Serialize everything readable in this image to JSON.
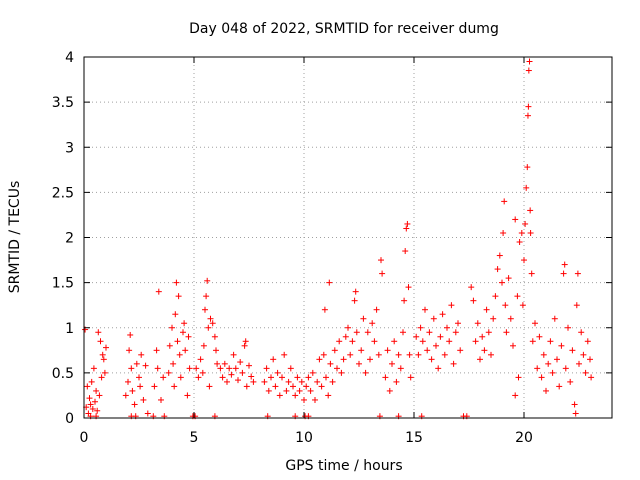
{
  "chart_data": {
    "type": "scatter",
    "title": "Day 048 of 2022, SRMTID for receiver dumg",
    "xlabel": "GPS time / hours",
    "ylabel": "SRMTID / TECUs",
    "xlim": [
      0,
      24
    ],
    "ylim": [
      0,
      4
    ],
    "grid": true,
    "marker": "+",
    "marker_color": "#ff0000",
    "x_ticks": [
      0,
      5,
      10,
      15,
      20
    ],
    "x_tick_labels": [
      "0",
      "5",
      "10",
      "15",
      "20"
    ],
    "y_ticks": [
      0,
      0.5,
      1,
      1.5,
      2,
      2.5,
      3,
      3.5,
      4
    ],
    "y_tick_labels": [
      "0",
      "0.5",
      "1",
      "1.5",
      "2",
      "2.5",
      "3",
      "3.5",
      "4"
    ],
    "series": [
      {
        "name": "SRMTID",
        "points": [
          [
            0.05,
            0.98
          ],
          [
            0.1,
            0.12
          ],
          [
            0.15,
            0.35
          ],
          [
            0.2,
            0.05
          ],
          [
            0.25,
            0.22
          ],
          [
            0.3,
            0.15
          ],
          [
            0.35,
            0.4
          ],
          [
            0.4,
            0.1
          ],
          [
            0.45,
            0.55
          ],
          [
            0.5,
            0.18
          ],
          [
            0.55,
            0.3
          ],
          [
            0.6,
            0.08
          ],
          [
            0.65,
            0.95
          ],
          [
            0.7,
            0.25
          ],
          [
            0.75,
            0.85
          ],
          [
            0.8,
            0.45
          ],
          [
            0.85,
            0.7
          ],
          [
            0.9,
            0.65
          ],
          [
            0.95,
            0.5
          ],
          [
            1.0,
            0.78
          ],
          [
            0.55,
            0.02
          ],
          [
            0.3,
            0.02
          ],
          [
            1.9,
            0.25
          ],
          [
            2.0,
            0.4
          ],
          [
            2.05,
            0.75
          ],
          [
            2.1,
            0.92
          ],
          [
            2.15,
            0.55
          ],
          [
            2.2,
            0.3
          ],
          [
            2.3,
            0.15
          ],
          [
            2.4,
            0.6
          ],
          [
            2.5,
            0.45
          ],
          [
            2.55,
            0.35
          ],
          [
            2.6,
            0.7
          ],
          [
            2.7,
            0.2
          ],
          [
            2.8,
            0.58
          ],
          [
            2.9,
            0.05
          ],
          [
            2.35,
            0.02
          ],
          [
            2.15,
            0.02
          ],
          [
            3.2,
            0.35
          ],
          [
            3.3,
            0.75
          ],
          [
            3.35,
            0.55
          ],
          [
            3.4,
            1.4
          ],
          [
            3.5,
            0.2
          ],
          [
            3.6,
            0.45
          ],
          [
            3.15,
            0.02
          ],
          [
            3.65,
            0.02
          ],
          [
            3.85,
            0.5
          ],
          [
            3.9,
            0.8
          ],
          [
            4.0,
            1.0
          ],
          [
            4.05,
            0.6
          ],
          [
            4.1,
            0.35
          ],
          [
            4.15,
            1.15
          ],
          [
            4.2,
            1.5
          ],
          [
            4.25,
            0.85
          ],
          [
            4.3,
            1.35
          ],
          [
            4.35,
            0.7
          ],
          [
            4.4,
            0.45
          ],
          [
            4.5,
            0.95
          ],
          [
            4.55,
            1.05
          ],
          [
            4.6,
            0.75
          ],
          [
            4.7,
            0.25
          ],
          [
            4.75,
            0.9
          ],
          [
            4.8,
            0.55
          ],
          [
            4.95,
            0.02
          ],
          [
            5.05,
            0.02
          ],
          [
            5.1,
            0.55
          ],
          [
            5.2,
            0.45
          ],
          [
            5.3,
            0.65
          ],
          [
            5.4,
            0.5
          ],
          [
            5.45,
            0.8
          ],
          [
            5.5,
            1.2
          ],
          [
            5.55,
            1.35
          ],
          [
            5.6,
            1.52
          ],
          [
            5.65,
            1.0
          ],
          [
            5.7,
            0.35
          ],
          [
            5.75,
            1.1
          ],
          [
            5.85,
            1.05
          ],
          [
            5.95,
            0.9
          ],
          [
            6.0,
            0.75
          ],
          [
            6.05,
            0.6
          ],
          [
            5.95,
            0.02
          ],
          [
            6.2,
            0.55
          ],
          [
            6.3,
            0.45
          ],
          [
            6.4,
            0.6
          ],
          [
            6.5,
            0.4
          ],
          [
            6.6,
            0.55
          ],
          [
            6.7,
            0.48
          ],
          [
            6.8,
            0.7
          ],
          [
            6.9,
            0.55
          ],
          [
            7.0,
            0.42
          ],
          [
            7.1,
            0.62
          ],
          [
            7.2,
            0.5
          ],
          [
            7.3,
            0.8
          ],
          [
            7.35,
            0.85
          ],
          [
            7.4,
            0.35
          ],
          [
            7.5,
            0.58
          ],
          [
            7.6,
            0.46
          ],
          [
            7.7,
            0.4
          ],
          [
            8.2,
            0.4
          ],
          [
            8.3,
            0.55
          ],
          [
            8.4,
            0.3
          ],
          [
            8.5,
            0.45
          ],
          [
            8.6,
            0.65
          ],
          [
            8.7,
            0.35
          ],
          [
            8.8,
            0.5
          ],
          [
            8.9,
            0.25
          ],
          [
            9.0,
            0.45
          ],
          [
            9.1,
            0.7
          ],
          [
            9.2,
            0.3
          ],
          [
            9.3,
            0.4
          ],
          [
            9.4,
            0.55
          ],
          [
            9.5,
            0.35
          ],
          [
            9.6,
            0.25
          ],
          [
            9.7,
            0.45
          ],
          [
            9.8,
            0.3
          ],
          [
            9.9,
            0.4
          ],
          [
            10.0,
            0.2
          ],
          [
            10.1,
            0.35
          ],
          [
            10.2,
            0.45
          ],
          [
            8.35,
            0.02
          ],
          [
            9.6,
            0.02
          ],
          [
            10.05,
            0.02
          ],
          [
            10.2,
            0.02
          ],
          [
            10.3,
            0.3
          ],
          [
            10.4,
            0.5
          ],
          [
            10.5,
            0.2
          ],
          [
            10.6,
            0.4
          ],
          [
            10.7,
            0.65
          ],
          [
            10.8,
            0.35
          ],
          [
            10.9,
            0.7
          ],
          [
            10.95,
            1.2
          ],
          [
            11.0,
            0.45
          ],
          [
            11.1,
            0.25
          ],
          [
            11.15,
            1.5
          ],
          [
            11.2,
            0.6
          ],
          [
            11.3,
            0.4
          ],
          [
            11.4,
            0.75
          ],
          [
            11.5,
            0.55
          ],
          [
            11.6,
            0.85
          ],
          [
            11.7,
            0.5
          ],
          [
            11.8,
            0.65
          ],
          [
            11.9,
            0.9
          ],
          [
            12.0,
            1.0
          ],
          [
            12.1,
            0.7
          ],
          [
            12.2,
            0.85
          ],
          [
            12.3,
            1.3
          ],
          [
            12.35,
            1.4
          ],
          [
            12.4,
            0.95
          ],
          [
            12.5,
            0.6
          ],
          [
            12.6,
            0.75
          ],
          [
            12.7,
            1.1
          ],
          [
            12.8,
            0.5
          ],
          [
            12.9,
            0.95
          ],
          [
            13.0,
            0.65
          ],
          [
            13.1,
            1.05
          ],
          [
            13.2,
            0.85
          ],
          [
            13.3,
            1.2
          ],
          [
            13.4,
            0.7
          ],
          [
            13.5,
            1.75
          ],
          [
            13.55,
            1.6
          ],
          [
            13.45,
            0.02
          ],
          [
            13.7,
            0.45
          ],
          [
            13.8,
            0.75
          ],
          [
            13.9,
            0.3
          ],
          [
            14.0,
            0.6
          ],
          [
            14.1,
            0.85
          ],
          [
            14.2,
            0.4
          ],
          [
            14.3,
            0.7
          ],
          [
            14.4,
            0.55
          ],
          [
            14.5,
            0.95
          ],
          [
            14.55,
            1.3
          ],
          [
            14.6,
            1.85
          ],
          [
            14.65,
            2.1
          ],
          [
            14.7,
            2.15
          ],
          [
            14.75,
            1.45
          ],
          [
            14.8,
            0.7
          ],
          [
            14.85,
            0.45
          ],
          [
            14.3,
            0.02
          ],
          [
            15.1,
            0.9
          ],
          [
            15.2,
            0.7
          ],
          [
            15.3,
            1.0
          ],
          [
            15.4,
            0.85
          ],
          [
            15.5,
            1.2
          ],
          [
            15.6,
            0.75
          ],
          [
            15.7,
            0.95
          ],
          [
            15.8,
            0.65
          ],
          [
            15.9,
            1.1
          ],
          [
            16.0,
            0.8
          ],
          [
            16.1,
            0.55
          ],
          [
            16.2,
            0.9
          ],
          [
            16.3,
            1.15
          ],
          [
            16.4,
            0.7
          ],
          [
            16.5,
            1.0
          ],
          [
            16.6,
            0.85
          ],
          [
            16.7,
            1.25
          ],
          [
            16.8,
            0.6
          ],
          [
            16.9,
            0.95
          ],
          [
            17.0,
            1.05
          ],
          [
            17.1,
            0.75
          ],
          [
            15.35,
            0.02
          ],
          [
            17.25,
            0.02
          ],
          [
            17.4,
            0.02
          ],
          [
            17.6,
            1.45
          ],
          [
            17.7,
            1.3
          ],
          [
            17.8,
            0.85
          ],
          [
            17.9,
            1.05
          ],
          [
            18.0,
            0.65
          ],
          [
            18.1,
            0.9
          ],
          [
            18.2,
            0.75
          ],
          [
            18.3,
            1.2
          ],
          [
            18.4,
            0.95
          ],
          [
            18.5,
            0.7
          ],
          [
            18.6,
            1.1
          ],
          [
            18.7,
            1.35
          ],
          [
            18.8,
            1.65
          ],
          [
            18.9,
            1.8
          ],
          [
            19.0,
            1.5
          ],
          [
            19.05,
            2.05
          ],
          [
            19.1,
            2.4
          ],
          [
            19.15,
            1.25
          ],
          [
            19.2,
            0.95
          ],
          [
            19.3,
            1.55
          ],
          [
            19.4,
            1.1
          ],
          [
            19.5,
            0.8
          ],
          [
            19.6,
            2.2
          ],
          [
            19.7,
            1.35
          ],
          [
            19.8,
            1.95
          ],
          [
            19.9,
            2.05
          ],
          [
            19.95,
            1.25
          ],
          [
            20.0,
            1.75
          ],
          [
            20.05,
            2.15
          ],
          [
            20.1,
            2.55
          ],
          [
            20.15,
            2.78
          ],
          [
            20.18,
            3.35
          ],
          [
            20.2,
            3.45
          ],
          [
            20.22,
            3.85
          ],
          [
            20.25,
            3.95
          ],
          [
            20.28,
            2.3
          ],
          [
            20.3,
            2.05
          ],
          [
            20.35,
            1.6
          ],
          [
            20.4,
            0.85
          ],
          [
            20.5,
            1.05
          ],
          [
            19.6,
            0.25
          ],
          [
            19.75,
            0.45
          ],
          [
            20.6,
            0.55
          ],
          [
            20.7,
            0.9
          ],
          [
            20.8,
            0.45
          ],
          [
            20.9,
            0.7
          ],
          [
            21.0,
            0.3
          ],
          [
            21.1,
            0.6
          ],
          [
            21.2,
            0.85
          ],
          [
            21.3,
            0.5
          ],
          [
            21.4,
            1.1
          ],
          [
            21.5,
            0.65
          ],
          [
            21.6,
            0.35
          ],
          [
            21.7,
            0.8
          ],
          [
            21.8,
            1.6
          ],
          [
            21.85,
            1.7
          ],
          [
            21.9,
            0.55
          ],
          [
            22.0,
            1.0
          ],
          [
            22.1,
            0.4
          ],
          [
            22.2,
            0.75
          ],
          [
            22.3,
            0.15
          ],
          [
            22.35,
            0.05
          ],
          [
            22.4,
            1.25
          ],
          [
            22.45,
            1.6
          ],
          [
            22.5,
            0.6
          ],
          [
            22.6,
            0.95
          ],
          [
            22.7,
            0.7
          ],
          [
            22.8,
            0.5
          ],
          [
            22.9,
            0.85
          ],
          [
            23.0,
            0.65
          ],
          [
            23.05,
            0.45
          ]
        ]
      }
    ]
  }
}
